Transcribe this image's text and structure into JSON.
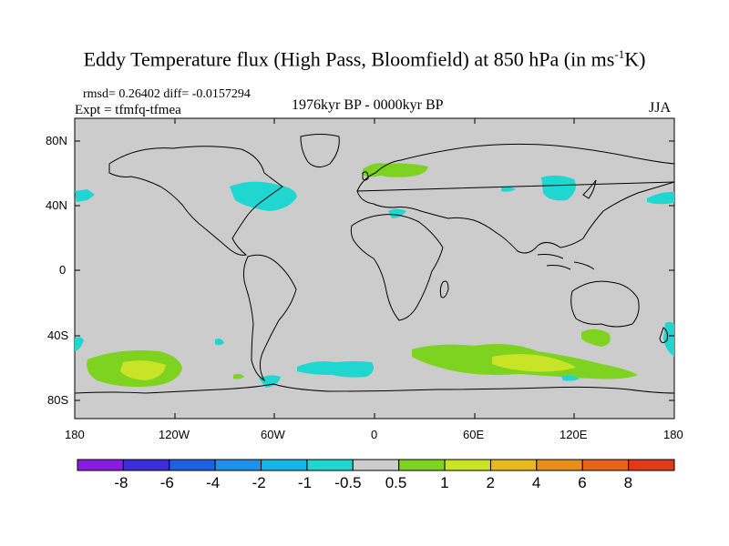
{
  "title": {
    "main": "Eddy Temperature flux (High Pass, Bloomfield) at 850 hPa (in ms",
    "exp": "-1",
    "unit_end": "K)"
  },
  "stats": "rmsd= 0.26402  diff= -0.0157294",
  "expt": "Expt = tfmfq-tfmea",
  "period": "1976kyr BP - 0000kyr BP",
  "season": "JJA",
  "lat_labels": [
    "80N",
    "40N",
    "0",
    "40S",
    "80S"
  ],
  "lon_labels": [
    "180",
    "120W",
    "60W",
    "0",
    "60E",
    "120E",
    "180"
  ],
  "colorbar": {
    "labels": [
      "-8",
      "-6",
      "-4",
      "-2",
      "-1",
      "-0.5",
      "0.5",
      "1",
      "2",
      "4",
      "6",
      "8"
    ],
    "colors": [
      "#8a1be0",
      "#3a2fd6",
      "#1f5fe0",
      "#1e90e8",
      "#13b7e6",
      "#1fd6d0",
      "#cccccc",
      "#7ed321",
      "#c9e326",
      "#e8b81e",
      "#e88c1a",
      "#e8641a",
      "#e03a1a"
    ]
  },
  "map": {
    "background_color": "#cccccc",
    "anomaly_regions": [
      {
        "label": "N Europe",
        "lon": 20,
        "lat": 62,
        "level": "0.5-1"
      },
      {
        "label": "Mediterranean",
        "lon": 15,
        "lat": 38,
        "level": "-1 to -0.5"
      },
      {
        "label": "E North America",
        "lon": -65,
        "lat": 45,
        "level": "-1 to -0.5"
      },
      {
        "label": "NE Pacific",
        "lon": -168,
        "lat": 47,
        "level": "-1 to -0.5"
      },
      {
        "label": "NW Pacific",
        "lon": 150,
        "lat": 50,
        "level": "-1 to -0.5"
      },
      {
        "label": "S Pacific",
        "lon": -140,
        "lat": -62,
        "level": "1-2"
      },
      {
        "label": "Southern Indian Ocean",
        "lon": 90,
        "lat": -58,
        "level": "1-2"
      },
      {
        "label": "S Atlantic",
        "lon": -20,
        "lat": -60,
        "level": "-1 to -0.5"
      },
      {
        "label": "S Australia",
        "lon": 140,
        "lat": -40,
        "level": "0.5-1"
      }
    ]
  }
}
